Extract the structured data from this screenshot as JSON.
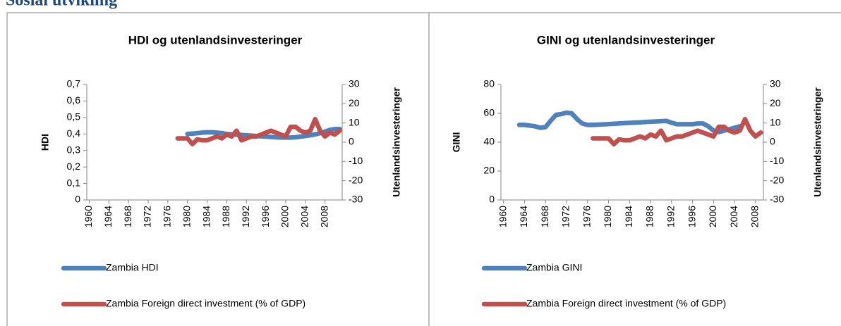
{
  "heading": "Sosial utvikling",
  "chart_data": [
    {
      "type": "line",
      "title": "HDI og utenlandsinvesteringer",
      "y_label": "HDI",
      "y2_label": "Utenlandsinvesteringer",
      "legend": "bottom",
      "x": [
        1978,
        1979,
        1980,
        1981,
        1982,
        1983,
        1984,
        1985,
        1986,
        1987,
        1988,
        1989,
        1990,
        1991,
        1992,
        1993,
        1994,
        1995,
        1996,
        1997,
        1998,
        1999,
        2000,
        2001,
        2002,
        2003,
        2004,
        2005,
        2006,
        2007,
        2008,
        2009,
        2010,
        2011
      ],
      "xlim": [
        1959.5,
        2011.5
      ],
      "xticks": [
        1960,
        1964,
        1968,
        1972,
        1976,
        1980,
        1984,
        1988,
        1992,
        1996,
        2000,
        2004,
        2008
      ],
      "ylim": [
        0,
        0.7
      ],
      "yticks": [
        0,
        {
          "value": 0.1,
          "label": "0,1"
        },
        {
          "value": 0.2,
          "label": "0,2"
        },
        {
          "value": 0.3,
          "label": "0,3"
        },
        {
          "value": 0.4,
          "label": "0,4"
        },
        {
          "value": 0.5,
          "label": "0,5"
        },
        {
          "value": 0.6,
          "label": "0,6"
        },
        {
          "value": 0.7,
          "label": "0,7"
        }
      ],
      "y2lim": [
        -30,
        30
      ],
      "y2ticks": [
        -30,
        -20,
        -10,
        0,
        10,
        20,
        30
      ],
      "series": [
        {
          "name": "Zambia HDI",
          "color": "#4f81bd",
          "values": [
            null,
            null,
            0.4,
            0.402,
            0.405,
            0.408,
            0.41,
            0.41,
            0.408,
            0.405,
            0.4,
            0.398,
            0.396,
            0.394,
            0.392,
            0.39,
            0.388,
            0.386,
            0.384,
            0.382,
            0.38,
            0.378,
            0.378,
            0.378,
            0.38,
            0.384,
            0.388,
            0.392,
            0.398,
            0.405,
            0.415,
            0.425,
            0.43,
            0.43
          ]
        },
        {
          "name": "Zambia Foreign direct investment (% of GDP)",
          "color": "#c0504d",
          "axis": "y2",
          "values": [
            2,
            2,
            2,
            -1,
            1.5,
            1,
            1,
            2,
            3,
            2,
            4,
            3,
            6,
            1,
            2,
            3,
            3,
            4,
            5,
            6,
            5,
            4,
            3,
            8,
            8,
            6,
            5,
            6,
            12,
            6,
            3,
            5,
            4,
            6
          ]
        }
      ]
    },
    {
      "type": "line",
      "title": "GINI og utenlandsinvesteringer",
      "y_label": "GINI",
      "y2_label": "Utenlandsinvesteringer",
      "legend": "bottom",
      "x": [
        1963,
        1964,
        1965,
        1966,
        1967,
        1968,
        1969,
        1970,
        1971,
        1972,
        1973,
        1974,
        1975,
        1976,
        1977,
        1978,
        1979,
        1980,
        1981,
        1982,
        1983,
        1984,
        1985,
        1986,
        1987,
        1988,
        1989,
        1990,
        1991,
        1992,
        1993,
        1994,
        1995,
        1996,
        1997,
        1998,
        1999,
        2000,
        2001,
        2002,
        2003,
        2004,
        2005,
        2006,
        2007,
        2008,
        2009
      ],
      "xlim": [
        1959.5,
        2009.5
      ],
      "xticks": [
        1960,
        1964,
        1968,
        1972,
        1976,
        1980,
        1984,
        1988,
        1992,
        1996,
        2000,
        2004,
        2008
      ],
      "ylim": [
        0,
        80
      ],
      "yticks": [
        0,
        20,
        40,
        60,
        80
      ],
      "y2lim": [
        -30,
        30
      ],
      "y2ticks": [
        -30,
        -20,
        -10,
        0,
        10,
        20,
        30
      ],
      "series": [
        {
          "name": "Zambia GINI",
          "color": "#4f81bd",
          "values": [
            52,
            52,
            51.5,
            51,
            50,
            50.5,
            55,
            59,
            59.5,
            60.5,
            60,
            56,
            53,
            52,
            52,
            52.2,
            52.4,
            52.6,
            52.8,
            53,
            53.2,
            53.4,
            53.6,
            53.8,
            54,
            54.2,
            54.4,
            54.6,
            54.8,
            53.5,
            52.5,
            52.5,
            52.5,
            52.5,
            53,
            53,
            51,
            48,
            47,
            48,
            49,
            50,
            51,
            null,
            null,
            null,
            null
          ]
        },
        {
          "name": "Zambia Foreign direct investment (% of GDP)",
          "color": "#c0504d",
          "axis": "y2",
          "values": [
            null,
            null,
            null,
            null,
            null,
            null,
            null,
            null,
            null,
            null,
            null,
            null,
            null,
            null,
            2,
            2,
            2,
            2,
            -1,
            1.5,
            1,
            1,
            2,
            3,
            2,
            4,
            3,
            6,
            1,
            2,
            3,
            3,
            4,
            5,
            6,
            5,
            4,
            3,
            8,
            8,
            6,
            5,
            6,
            12,
            6,
            3,
            5
          ]
        }
      ]
    }
  ]
}
